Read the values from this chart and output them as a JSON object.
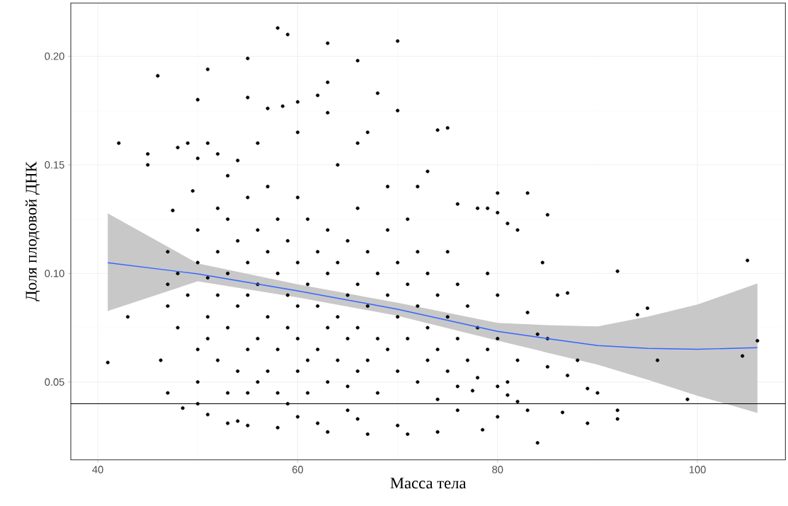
{
  "chart_data": {
    "type": "scatter",
    "xlabel": "Масса тела",
    "ylabel": "Доля плодовой ДНК",
    "xlim": [
      37.3,
      108.8
    ],
    "ylim": [
      0.0142,
      0.2245
    ],
    "xticks": [
      40,
      60,
      80,
      100
    ],
    "yticks": [
      {
        "value": 0.05,
        "label": "0.05"
      },
      {
        "value": 0.1,
        "label": "0.10"
      },
      {
        "value": 0.15,
        "label": "0.15"
      },
      {
        "value": 0.2,
        "label": "0.20"
      }
    ],
    "grid": true,
    "series": [
      {
        "type": "scatter",
        "color": "#000000",
        "marker": "circle",
        "x": [
          41,
          42.1,
          43,
          45,
          45,
          46,
          46.3,
          47,
          47.5,
          48,
          48.5,
          49,
          49.5,
          50,
          50,
          51,
          51,
          52,
          53,
          54,
          55,
          55,
          56,
          57,
          58,
          58.5,
          59,
          60,
          60,
          62,
          63,
          63,
          63,
          64,
          66,
          66,
          67,
          68,
          69,
          70,
          70,
          72,
          73,
          74,
          75,
          76,
          78,
          79,
          80,
          80,
          81,
          82,
          83,
          85,
          84.5,
          86,
          87,
          89,
          90,
          92,
          94,
          95,
          96,
          99,
          104.5,
          105,
          106,
          92,
          92,
          89,
          86.5,
          84,
          83,
          82,
          81,
          80,
          77.5,
          78.5,
          76,
          74,
          71,
          70,
          67,
          66,
          65,
          63,
          62,
          60,
          58,
          55,
          54,
          53,
          51,
          50,
          47,
          47,
          47,
          48,
          48,
          49,
          50,
          50,
          50,
          50,
          51,
          51,
          51,
          52,
          52,
          52,
          52,
          53,
          53,
          53,
          53,
          54,
          54,
          54,
          55,
          55,
          55,
          55,
          55,
          56,
          56,
          56,
          56,
          57,
          57,
          57,
          57,
          58,
          58,
          58,
          58,
          59,
          59,
          59,
          59,
          60,
          60,
          60,
          60,
          60,
          61,
          61,
          61,
          61,
          62,
          62,
          62,
          63,
          63,
          63,
          63,
          64,
          64,
          64,
          65,
          65,
          65,
          65,
          66,
          66,
          66,
          66,
          67,
          67,
          67,
          68,
          68,
          68,
          69,
          69,
          69,
          70,
          70,
          70,
          71,
          71,
          71,
          72,
          72,
          72,
          73,
          73,
          73,
          74,
          74,
          74,
          75,
          75,
          75,
          76,
          76,
          76,
          77,
          77,
          78,
          78,
          79,
          79,
          80,
          80,
          80,
          81,
          82,
          83,
          84,
          85,
          85,
          88,
          87
        ],
        "values": [
          0.059,
          0.16,
          0.08,
          0.15,
          0.155,
          0.191,
          0.06,
          0.045,
          0.129,
          0.158,
          0.038,
          0.16,
          0.138,
          0.18,
          0.153,
          0.194,
          0.16,
          0.155,
          0.145,
          0.152,
          0.199,
          0.181,
          0.16,
          0.176,
          0.213,
          0.177,
          0.21,
          0.179,
          0.165,
          0.182,
          0.206,
          0.188,
          0.174,
          0.15,
          0.198,
          0.16,
          0.165,
          0.183,
          0.14,
          0.207,
          0.175,
          0.14,
          0.147,
          0.166,
          0.167,
          0.132,
          0.13,
          0.13,
          0.137,
          0.128,
          0.123,
          0.12,
          0.137,
          0.127,
          0.105,
          0.09,
          0.091,
          0.047,
          0.045,
          0.101,
          0.081,
          0.084,
          0.06,
          0.042,
          0.062,
          0.106,
          0.069,
          0.033,
          0.037,
          0.031,
          0.036,
          0.022,
          0.037,
          0.041,
          0.044,
          0.034,
          0.046,
          0.028,
          0.037,
          0.027,
          0.026,
          0.03,
          0.026,
          0.033,
          0.037,
          0.027,
          0.031,
          0.034,
          0.029,
          0.03,
          0.032,
          0.031,
          0.035,
          0.04,
          0.11,
          0.095,
          0.085,
          0.1,
          0.075,
          0.09,
          0.12,
          0.105,
          0.065,
          0.05,
          0.098,
          0.08,
          0.07,
          0.13,
          0.11,
          0.09,
          0.06,
          0.125,
          0.1,
          0.075,
          0.045,
          0.115,
          0.085,
          0.055,
          0.135,
          0.105,
          0.09,
          0.065,
          0.045,
          0.12,
          0.095,
          0.07,
          0.05,
          0.14,
          0.11,
          0.08,
          0.055,
          0.125,
          0.1,
          0.065,
          0.045,
          0.115,
          0.09,
          0.075,
          0.04,
          0.135,
          0.105,
          0.085,
          0.07,
          0.055,
          0.125,
          0.095,
          0.06,
          0.045,
          0.11,
          0.085,
          0.065,
          0.12,
          0.1,
          0.075,
          0.05,
          0.105,
          0.08,
          0.06,
          0.115,
          0.09,
          0.07,
          0.048,
          0.13,
          0.095,
          0.075,
          0.055,
          0.11,
          0.085,
          0.06,
          0.1,
          0.07,
          0.045,
          0.12,
          0.09,
          0.065,
          0.105,
          0.08,
          0.055,
          0.125,
          0.095,
          0.07,
          0.11,
          0.085,
          0.05,
          0.1,
          0.075,
          0.06,
          0.09,
          0.065,
          0.042,
          0.11,
          0.08,
          0.055,
          0.095,
          0.07,
          0.048,
          0.085,
          0.06,
          0.075,
          0.052,
          0.1,
          0.065,
          0.09,
          0.07,
          0.048,
          0.05,
          0.06,
          0.082,
          0.072,
          0.057,
          0.07,
          0.06,
          0.053
        ]
      },
      {
        "type": "line",
        "color": "#3366ff",
        "marker": "none",
        "x": [
          41,
          50,
          60,
          70,
          80,
          85,
          90,
          95,
          100,
          106
        ],
        "values": [
          0.1049,
          0.0998,
          0.092,
          0.0835,
          0.0733,
          0.07,
          0.0668,
          0.0655,
          0.0651,
          0.0658
        ],
        "upper": [
          0.1277,
          0.1046,
          0.095,
          0.0865,
          0.0772,
          0.0762,
          0.0756,
          0.0801,
          0.0857,
          0.0954
        ],
        "lower": [
          0.0827,
          0.0964,
          0.089,
          0.0805,
          0.0691,
          0.0635,
          0.058,
          0.0511,
          0.0437,
          0.0358
        ]
      }
    ],
    "ref_lines": [
      {
        "axis": "y",
        "value": 0.04,
        "color": "#000000"
      }
    ]
  }
}
